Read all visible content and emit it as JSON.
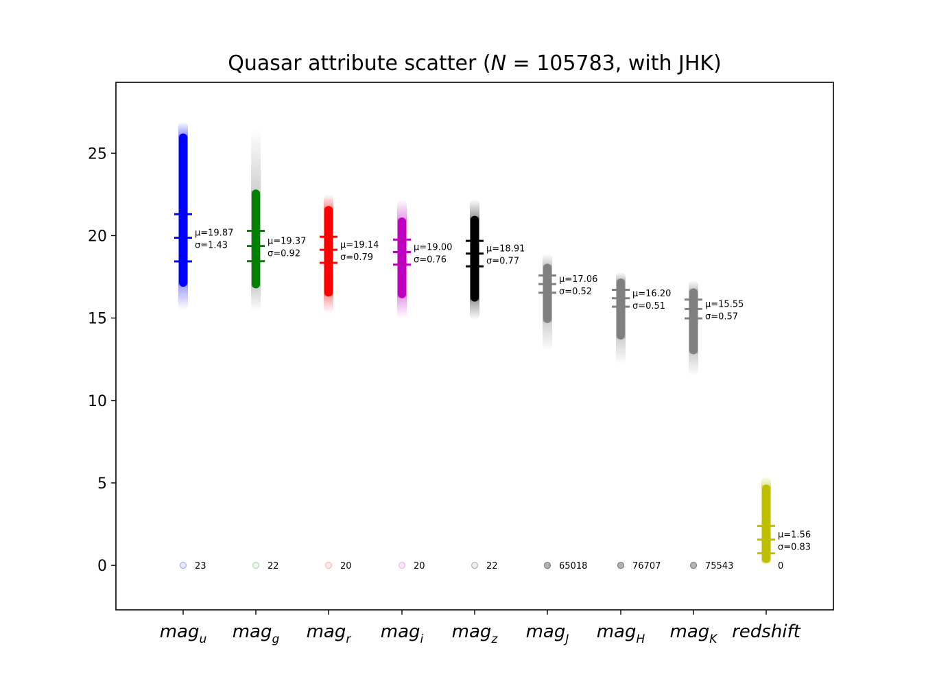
{
  "chart_data": {
    "type": "scatter",
    "title_prefix": "Quasar attribute scatter (",
    "title_var": "N",
    "title_suffix": " = 105783, with JHK)",
    "ylim": [
      -2.7,
      29.3
    ],
    "yticks": [
      0,
      5,
      10,
      15,
      20,
      25
    ],
    "series": [
      {
        "name": "mag_u",
        "label_main": "mag",
        "label_sub": "u",
        "color": "#0000ff",
        "mean": 19.87,
        "std": 1.43,
        "mean_label": "19.87",
        "std_label": "1.43",
        "solid_min": 16.9,
        "solid_max": 26.2,
        "fade_min": 15.5,
        "fade_max": 26.9,
        "missing": "23",
        "missing_alpha": 0.15
      },
      {
        "name": "mag_g",
        "label_main": "mag",
        "label_sub": "g",
        "color": "#008000",
        "mean": 19.37,
        "std": 0.92,
        "mean_label": "19.37",
        "std_label": "0.92",
        "solid_min": 16.8,
        "solid_max": 22.8,
        "fade_min": 15.4,
        "fade_max": 26.5,
        "missing": "22",
        "missing_alpha": 0.12
      },
      {
        "name": "mag_r",
        "label_main": "mag",
        "label_sub": "r",
        "color": "#ff0000",
        "mean": 19.14,
        "std": 0.79,
        "mean_label": "19.14",
        "std_label": "0.79",
        "solid_min": 16.3,
        "solid_max": 21.8,
        "fade_min": 15.3,
        "fade_max": 22.5,
        "missing": "20",
        "missing_alpha": 0.12
      },
      {
        "name": "mag_i",
        "label_main": "mag",
        "label_sub": "i",
        "color": "#bf00bf",
        "mean": 19.0,
        "std": 0.76,
        "mean_label": "19.00",
        "std_label": "0.76",
        "solid_min": 16.2,
        "solid_max": 21.1,
        "fade_min": 15.0,
        "fade_max": 22.2,
        "missing": "20",
        "missing_alpha": 0.12
      },
      {
        "name": "mag_z",
        "label_main": "mag",
        "label_sub": "z",
        "color": "#000000",
        "mean": 18.91,
        "std": 0.77,
        "mean_label": "18.91",
        "std_label": "0.77",
        "solid_min": 16.0,
        "solid_max": 21.2,
        "fade_min": 14.9,
        "fade_max": 22.2,
        "missing": "22",
        "missing_alpha": 0.12
      },
      {
        "name": "mag_J",
        "label_main": "mag",
        "label_sub": "J",
        "color": "#808080",
        "mean": 17.06,
        "std": 0.52,
        "mean_label": "17.06",
        "std_label": "0.52",
        "solid_min": 14.7,
        "solid_max": 18.3,
        "fade_min": 13.0,
        "fade_max": 18.9,
        "missing": "65018",
        "missing_alpha": 1.0
      },
      {
        "name": "mag_H",
        "label_main": "mag",
        "label_sub": "H",
        "color": "#808080",
        "mean": 16.2,
        "std": 0.51,
        "mean_label": "16.20",
        "std_label": "0.51",
        "solid_min": 13.7,
        "solid_max": 17.4,
        "fade_min": 12.2,
        "fade_max": 17.8,
        "missing": "76707",
        "missing_alpha": 1.0
      },
      {
        "name": "mag_K",
        "label_main": "mag",
        "label_sub": "K",
        "color": "#808080",
        "mean": 15.55,
        "std": 0.57,
        "mean_label": "15.55",
        "std_label": "0.57",
        "solid_min": 12.8,
        "solid_max": 16.8,
        "fade_min": 11.5,
        "fade_max": 17.3,
        "missing": "75543",
        "missing_alpha": 1.0
      },
      {
        "name": "redshift",
        "label_main": "redshift",
        "label_sub": "",
        "color": "#bfbf00",
        "mean": 1.56,
        "std": 0.83,
        "mean_label": "1.56",
        "std_label": "0.83",
        "solid_min": 0.15,
        "solid_max": 4.9,
        "fade_min": 0.05,
        "fade_max": 5.4,
        "missing": "0",
        "missing_alpha": 0.0
      }
    ],
    "mu_prefix": "μ=",
    "sigma_prefix": "σ="
  }
}
